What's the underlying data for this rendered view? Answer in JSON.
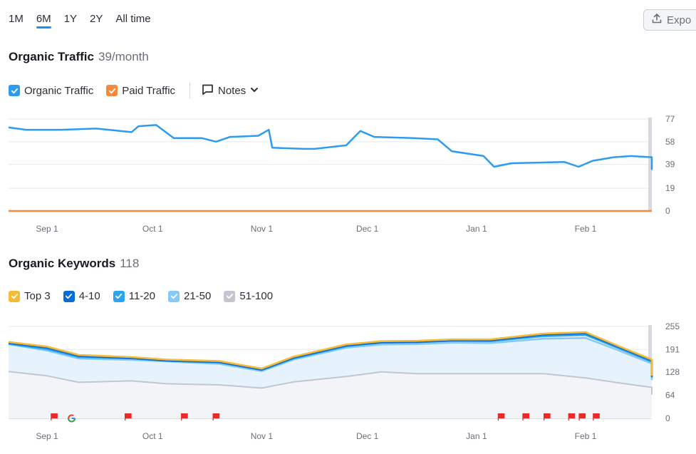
{
  "period_tabs": [
    {
      "label": "1M",
      "active": false
    },
    {
      "label": "6M",
      "active": true
    },
    {
      "label": "1Y",
      "active": false
    },
    {
      "label": "2Y",
      "active": false
    },
    {
      "label": "All time",
      "active": false
    }
  ],
  "export_label": "Expo",
  "traffic": {
    "title": "Organic Traffic",
    "value": "39/month",
    "legend": [
      {
        "label": "Organic Traffic",
        "color": "#2d9cf0"
      },
      {
        "label": "Paid Traffic",
        "color": "#f58a3c"
      }
    ],
    "notes_label": "Notes"
  },
  "keywords": {
    "title": "Organic Keywords",
    "value": "118",
    "legend": [
      {
        "label": "Top 3",
        "color": "#f6bb36"
      },
      {
        "label": "4-10",
        "color": "#0a6cd9"
      },
      {
        "label": "11-20",
        "color": "#2ba5f0"
      },
      {
        "label": "21-50",
        "color": "#86c9f6"
      },
      {
        "label": "51-100",
        "color": "#c3c6cf"
      }
    ]
  },
  "chart_data": [
    {
      "type": "line",
      "ylim": [
        0,
        77
      ],
      "y_ticks": [
        "77",
        "58",
        "39",
        "19",
        "0"
      ],
      "x_ticks": [
        "Sep 1",
        "Oct 1",
        "Nov 1",
        "Dec 1",
        "Jan 1",
        "Feb 1"
      ],
      "series": [
        {
          "name": "Organic Traffic",
          "color": "#2d9cf0",
          "points": [
            [
              "Aug 21",
              70
            ],
            [
              "Aug 26",
              68
            ],
            [
              "Sep 5",
              68
            ],
            [
              "Sep 15",
              69
            ],
            [
              "Sep 25",
              66
            ],
            [
              "Sep 27",
              71
            ],
            [
              "Oct 2",
              72
            ],
            [
              "Oct 7",
              61
            ],
            [
              "Oct 15",
              61
            ],
            [
              "Oct 19",
              58
            ],
            [
              "Oct 23",
              62
            ],
            [
              "Oct 31",
              63
            ],
            [
              "Nov 3",
              68
            ],
            [
              "Nov 4",
              53
            ],
            [
              "Nov 13",
              52
            ],
            [
              "Nov 16",
              52
            ],
            [
              "Nov 25",
              55
            ],
            [
              "Nov 29",
              67
            ],
            [
              "Dec 3",
              62
            ],
            [
              "Dec 14",
              61
            ],
            [
              "Dec 21",
              60
            ],
            [
              "Dec 25",
              50
            ],
            [
              "Jan 3",
              46
            ],
            [
              "Jan 6",
              37
            ],
            [
              "Jan 11",
              40
            ],
            [
              "Jan 26",
              41
            ],
            [
              "Jan 30",
              37
            ],
            [
              "Feb 3",
              42
            ],
            [
              "Feb 9",
              45
            ],
            [
              "Feb 14",
              46
            ],
            [
              "Feb 21",
              45
            ],
            [
              "Feb 27",
              36
            ],
            [
              "Mar 2",
              35
            ],
            [
              "Mar 6",
              40
            ],
            [
              "Mar 11",
              39
            ],
            [
              "Mar 20",
              39
            ]
          ]
        },
        {
          "name": "Paid Traffic",
          "color": "#f58a3c",
          "points": [
            [
              "Aug 21",
              0
            ],
            [
              "Mar 20",
              0
            ]
          ]
        }
      ]
    },
    {
      "type": "area",
      "ylim": [
        0,
        255
      ],
      "y_ticks": [
        "255",
        "191",
        "128",
        "64",
        "0"
      ],
      "x_ticks": [
        "Sep 1",
        "Oct 1",
        "Nov 1",
        "Dec 1",
        "Jan 1",
        "Feb 1"
      ],
      "series": [
        {
          "name": "51-100",
          "color": "#c3c6cf",
          "points": [
            [
              "Aug 21",
              130
            ],
            [
              "Sep 1",
              118
            ],
            [
              "Sep 10",
              100
            ],
            [
              "Sep 25",
              104
            ],
            [
              "Oct 5",
              96
            ],
            [
              "Oct 20",
              93
            ],
            [
              "Nov 1",
              84
            ],
            [
              "Nov 10",
              101
            ],
            [
              "Nov 25",
              116
            ],
            [
              "Dec 5",
              129
            ],
            [
              "Dec 15",
              124
            ],
            [
              "Dec 25",
              124
            ],
            [
              "Jan 5",
              124
            ],
            [
              "Jan 20",
              124
            ],
            [
              "Feb 1",
              112
            ],
            [
              "Feb 10",
              99
            ],
            [
              "Feb 20",
              86
            ],
            [
              "Mar 1",
              79
            ],
            [
              "Mar 10",
              70
            ],
            [
              "Mar 20",
              66
            ]
          ]
        },
        {
          "name": "21-50",
          "color": "#86c9f6",
          "points": [
            [
              "Aug 21",
              206
            ],
            [
              "Sep 1",
              188
            ],
            [
              "Sep 10",
              166
            ],
            [
              "Sep 25",
              162
            ],
            [
              "Oct 5",
              158
            ],
            [
              "Oct 20",
              151
            ],
            [
              "Nov 1",
              131
            ],
            [
              "Nov 10",
              163
            ],
            [
              "Nov 25",
              196
            ],
            [
              "Dec 5",
              205
            ],
            [
              "Dec 15",
              206
            ],
            [
              "Dec 25",
              210
            ],
            [
              "Jan 5",
              209
            ],
            [
              "Jan 20",
              221
            ],
            [
              "Feb 1",
              223
            ],
            [
              "Feb 10",
              190
            ],
            [
              "Feb 20",
              152
            ],
            [
              "Mar 1",
              136
            ],
            [
              "Mar 10",
              120
            ],
            [
              "Mar 20",
              106
            ]
          ]
        },
        {
          "name": "11-20",
          "color": "#2ba5f0",
          "points": [
            [
              "Aug 21",
              207
            ],
            [
              "Sep 1",
              192
            ],
            [
              "Sep 10",
              170
            ],
            [
              "Sep 25",
              166
            ],
            [
              "Oct 5",
              160
            ],
            [
              "Oct 20",
              155
            ],
            [
              "Nov 1",
              134
            ],
            [
              "Nov 10",
              166
            ],
            [
              "Nov 25",
              200
            ],
            [
              "Dec 5",
              210
            ],
            [
              "Dec 15",
              211
            ],
            [
              "Dec 25",
              215
            ],
            [
              "Jan 5",
              214
            ],
            [
              "Jan 20",
              228
            ],
            [
              "Feb 1",
              231
            ],
            [
              "Feb 10",
              196
            ],
            [
              "Feb 20",
              157
            ],
            [
              "Mar 1",
              140
            ],
            [
              "Mar 10",
              126
            ],
            [
              "Mar 20",
              113
            ]
          ]
        },
        {
          "name": "4-10",
          "color": "#0a6cd9",
          "points": [
            [
              "Aug 21",
              209
            ],
            [
              "Sep 1",
              196
            ],
            [
              "Sep 10",
              173
            ],
            [
              "Sep 25",
              167
            ],
            [
              "Oct 5",
              160
            ],
            [
              "Oct 20",
              156
            ],
            [
              "Nov 1",
              135
            ],
            [
              "Nov 10",
              168
            ],
            [
              "Nov 25",
              202
            ],
            [
              "Dec 5",
              211
            ],
            [
              "Dec 15",
              212
            ],
            [
              "Dec 25",
              216
            ],
            [
              "Jan 5",
              216
            ],
            [
              "Jan 20",
              232
            ],
            [
              "Feb 1",
              236
            ],
            [
              "Feb 10",
              199
            ],
            [
              "Feb 20",
              160
            ],
            [
              "Mar 1",
              143
            ],
            [
              "Mar 10",
              128
            ],
            [
              "Mar 20",
              115
            ]
          ]
        },
        {
          "name": "Top 3",
          "color": "#f6bb36",
          "points": [
            [
              "Aug 21",
              212
            ],
            [
              "Sep 1",
              199
            ],
            [
              "Sep 10",
              176
            ],
            [
              "Sep 25",
              170
            ],
            [
              "Oct 5",
              163
            ],
            [
              "Oct 20",
              159
            ],
            [
              "Nov 1",
              138
            ],
            [
              "Nov 10",
              171
            ],
            [
              "Nov 25",
              205
            ],
            [
              "Dec 5",
              214
            ],
            [
              "Dec 15",
              215
            ],
            [
              "Dec 25",
              219
            ],
            [
              "Jan 5",
              219
            ],
            [
              "Jan 20",
              235
            ],
            [
              "Feb 1",
              239
            ],
            [
              "Feb 10",
              202
            ],
            [
              "Feb 20",
              163
            ],
            [
              "Mar 1",
              146
            ],
            [
              "Mar 10",
              131
            ],
            [
              "Mar 20",
              118
            ]
          ]
        }
      ],
      "flags": [
        "Sep 3",
        "Sep 24",
        "Oct 10",
        "Oct 19",
        "Jan 8",
        "Jan 15",
        "Jan 21",
        "Jan 28",
        "Jan 31",
        "Feb 4",
        "Mar 11",
        "Mar 18"
      ],
      "google_mark": "Sep 8"
    }
  ]
}
